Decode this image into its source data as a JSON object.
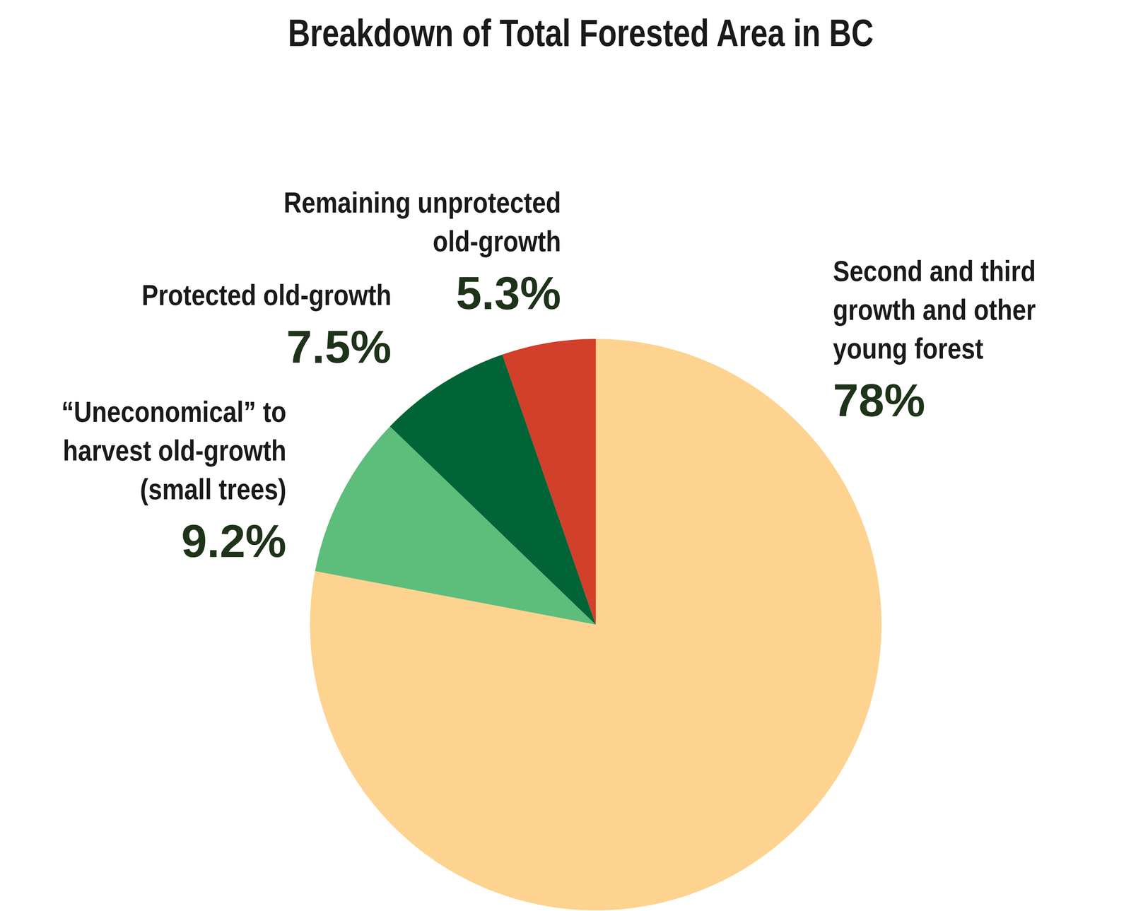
{
  "chart_data": {
    "type": "pie",
    "title": "Breakdown of Total Forested Area in BC",
    "categories": [
      "Second and third\ngrowth and other\nyoung forest",
      "“Uneconomical” to\nharvest old-growth\n(small trees)",
      "Protected old-growth",
      "Remaining unprotected\nold-growth"
    ],
    "values": [
      78,
      9.2,
      7.5,
      5.3
    ],
    "value_labels": [
      "78%",
      "9.2%",
      "7.5%",
      "5.3%"
    ],
    "colors": [
      "#fdd38f",
      "#5dbd7b",
      "#006437",
      "#d23f2a"
    ],
    "data_labels": true
  }
}
